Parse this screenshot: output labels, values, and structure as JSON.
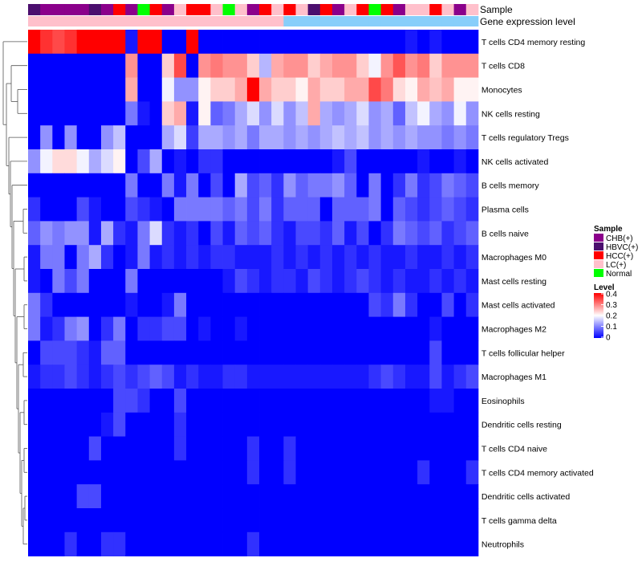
{
  "chart_data": {
    "type": "heatmap",
    "title": "",
    "annotation_labels": [
      "Sample",
      "Gene expression level"
    ],
    "rows": [
      "T cells CD4 memory resting",
      "T cells CD8",
      "Monocytes",
      "NK cells resting",
      "T cells regulatory  Tregs",
      "NK cells activated",
      "B cells memory",
      "Plasma cells",
      "B cells naive",
      "Macrophages M0",
      "Mast cells resting",
      "Mast cells activated",
      "Macrophages M2",
      "T cells follicular helper",
      "Macrophages M1",
      "Eosinophils",
      "Dendritic cells resting",
      "T cells CD4 naive",
      "T cells CD4 memory activated",
      "Dendritic cells activated",
      "T cells gamma delta",
      "Neutrophils"
    ],
    "sample_groups": [
      "HBVC(+)",
      "CHB(+)",
      "CHB(+)",
      "CHB(+)",
      "CHB(+)",
      "HBVC(+)",
      "CHB(+)",
      "HCC(+)",
      "CHB(+)",
      "Normal",
      "HCC(+)",
      "CHB(+)",
      "LC(+)",
      "HCC(+)",
      "HCC(+)",
      "LC(+)",
      "Normal",
      "LC(+)",
      "CHB(+)",
      "HCC(+)",
      "LC(+)",
      "HCC(+)",
      "LC(+)",
      "HBVC(+)",
      "HCC(+)",
      "CHB(+)",
      "LC(+)",
      "HCC(+)",
      "Normal",
      "HCC(+)",
      "CHB(+)",
      "LC(+)",
      "LC(+)",
      "HCC(+)",
      "LC(+)",
      "CHB(+)",
      "LC(+)"
    ],
    "expression_level_colors": [
      "#ffc0cb",
      "#ffc0cb",
      "#ffc0cb",
      "#ffc0cb",
      "#ffc0cb",
      "#ffc0cb",
      "#ffc0cb",
      "#ffc0cb",
      "#ffc0cb",
      "#ffc0cb",
      "#ffc0cb",
      "#ffc0cb",
      "#ffc0cb",
      "#ffc0cb",
      "#ffc0cb",
      "#ffc0cb",
      "#ffc0cb",
      "#ffc0cb",
      "#ffc0cb",
      "#ffc0cb",
      "#ffc0cb",
      "#87cefa",
      "#87cefa",
      "#87cefa",
      "#87cefa",
      "#87cefa",
      "#87cefa",
      "#87cefa",
      "#87cefa",
      "#87cefa",
      "#87cefa",
      "#87cefa",
      "#87cefa",
      "#87cefa",
      "#87cefa",
      "#87cefa",
      "#87cefa"
    ],
    "values": [
      [
        0.42,
        0.38,
        0.36,
        0.38,
        0.42,
        0.42,
        0.42,
        0.42,
        0.02,
        0.42,
        0.42,
        0.0,
        0.0,
        0.42,
        0.0,
        0.0,
        0.0,
        0.0,
        0.0,
        0.0,
        0.0,
        0.0,
        0.0,
        0.0,
        0.0,
        0.0,
        0.0,
        0.0,
        0.0,
        0.0,
        0.0,
        0.02,
        0.0,
        0.02,
        0.0,
        0.0,
        0.0
      ],
      [
        0.0,
        0.0,
        0.0,
        0.0,
        0.0,
        0.0,
        0.0,
        0.0,
        0.3,
        0.0,
        0.0,
        0.25,
        0.36,
        0.0,
        0.3,
        0.32,
        0.3,
        0.3,
        0.25,
        0.15,
        0.28,
        0.3,
        0.3,
        0.25,
        0.28,
        0.3,
        0.3,
        0.25,
        0.2,
        0.3,
        0.35,
        0.3,
        0.32,
        0.25,
        0.3,
        0.3,
        0.3
      ],
      [
        0.0,
        0.0,
        0.0,
        0.0,
        0.0,
        0.0,
        0.0,
        0.0,
        0.28,
        0.0,
        0.0,
        0.2,
        0.12,
        0.12,
        0.22,
        0.25,
        0.25,
        0.28,
        0.42,
        0.28,
        0.25,
        0.25,
        0.22,
        0.28,
        0.25,
        0.25,
        0.28,
        0.28,
        0.36,
        0.32,
        0.24,
        0.22,
        0.28,
        0.26,
        0.28,
        0.22,
        0.22
      ],
      [
        0.0,
        0.0,
        0.0,
        0.0,
        0.0,
        0.0,
        0.0,
        0.0,
        0.1,
        0.02,
        0.0,
        0.25,
        0.28,
        0.02,
        0.22,
        0.08,
        0.1,
        0.14,
        0.18,
        0.12,
        0.18,
        0.12,
        0.16,
        0.28,
        0.14,
        0.12,
        0.14,
        0.18,
        0.12,
        0.14,
        0.08,
        0.16,
        0.2,
        0.14,
        0.12,
        0.2,
        0.12
      ],
      [
        0.0,
        0.12,
        0.0,
        0.12,
        0.0,
        0.0,
        0.12,
        0.16,
        0.0,
        0.0,
        0.0,
        0.14,
        0.18,
        0.05,
        0.14,
        0.14,
        0.12,
        0.14,
        0.1,
        0.14,
        0.14,
        0.12,
        0.14,
        0.12,
        0.14,
        0.16,
        0.14,
        0.16,
        0.12,
        0.14,
        0.12,
        0.14,
        0.12,
        0.12,
        0.1,
        0.12,
        0.1
      ],
      [
        0.12,
        0.2,
        0.24,
        0.24,
        0.2,
        0.14,
        0.18,
        0.22,
        0.0,
        0.06,
        0.14,
        0.0,
        0.02,
        0.0,
        0.04,
        0.04,
        0.0,
        0.0,
        0.0,
        0.0,
        0.0,
        0.0,
        0.0,
        0.0,
        0.0,
        0.02,
        0.06,
        0.0,
        0.0,
        0.0,
        0.0,
        0.0,
        0.02,
        0.0,
        0.0,
        0.02,
        0.0
      ],
      [
        0.0,
        0.0,
        0.0,
        0.0,
        0.0,
        0.0,
        0.0,
        0.0,
        0.1,
        0.0,
        0.0,
        0.1,
        0.02,
        0.1,
        0.0,
        0.06,
        0.0,
        0.14,
        0.06,
        0.08,
        0.04,
        0.12,
        0.08,
        0.1,
        0.1,
        0.12,
        0.08,
        0.0,
        0.1,
        0.0,
        0.04,
        0.1,
        0.04,
        0.06,
        0.1,
        0.08,
        0.06
      ],
      [
        0.04,
        0.0,
        0.0,
        0.0,
        0.06,
        0.02,
        0.0,
        0.0,
        0.06,
        0.04,
        0.02,
        0.0,
        0.1,
        0.1,
        0.1,
        0.1,
        0.08,
        0.1,
        0.06,
        0.1,
        0.04,
        0.08,
        0.08,
        0.08,
        0.0,
        0.08,
        0.08,
        0.08,
        0.1,
        0.0,
        0.08,
        0.06,
        0.04,
        0.06,
        0.08,
        0.06,
        0.04
      ],
      [
        0.08,
        0.12,
        0.1,
        0.12,
        0.12,
        0.02,
        0.14,
        0.04,
        0.02,
        0.1,
        0.18,
        0.04,
        0.02,
        0.04,
        0.0,
        0.06,
        0.02,
        0.08,
        0.06,
        0.08,
        0.04,
        0.02,
        0.06,
        0.06,
        0.04,
        0.08,
        0.02,
        0.06,
        0.0,
        0.04,
        0.1,
        0.08,
        0.06,
        0.08,
        0.04,
        0.06,
        0.08
      ],
      [
        0.02,
        0.1,
        0.1,
        0.0,
        0.1,
        0.14,
        0.04,
        0.0,
        0.02,
        0.1,
        0.02,
        0.04,
        0.02,
        0.04,
        0.02,
        0.04,
        0.04,
        0.02,
        0.02,
        0.02,
        0.04,
        0.02,
        0.04,
        0.02,
        0.04,
        0.02,
        0.04,
        0.02,
        0.04,
        0.02,
        0.02,
        0.04,
        0.02,
        0.02,
        0.04,
        0.02,
        0.04
      ],
      [
        0.02,
        0.0,
        0.1,
        0.06,
        0.1,
        0.0,
        0.0,
        0.0,
        0.1,
        0.0,
        0.0,
        0.0,
        0.0,
        0.0,
        0.0,
        0.0,
        0.02,
        0.06,
        0.04,
        0.02,
        0.04,
        0.04,
        0.02,
        0.06,
        0.04,
        0.02,
        0.04,
        0.06,
        0.04,
        0.02,
        0.04,
        0.02,
        0.02,
        0.04,
        0.02,
        0.04,
        0.02
      ],
      [
        0.1,
        0.04,
        0.0,
        0.0,
        0.0,
        0.0,
        0.0,
        0.0,
        0.02,
        0.0,
        0.0,
        0.02,
        0.1,
        0.0,
        0.0,
        0.0,
        0.0,
        0.0,
        0.0,
        0.0,
        0.0,
        0.0,
        0.0,
        0.0,
        0.0,
        0.0,
        0.0,
        0.0,
        0.06,
        0.04,
        0.1,
        0.04,
        0.0,
        0.0,
        0.06,
        0.0,
        0.04
      ],
      [
        0.1,
        0.02,
        0.04,
        0.1,
        0.12,
        0.0,
        0.04,
        0.1,
        0.0,
        0.04,
        0.04,
        0.06,
        0.06,
        0.0,
        0.02,
        0.0,
        0.0,
        0.02,
        0.0,
        0.0,
        0.0,
        0.0,
        0.0,
        0.0,
        0.0,
        0.0,
        0.0,
        0.0,
        0.0,
        0.0,
        0.0,
        0.0,
        0.0,
        0.02,
        0.0,
        0.0,
        0.0
      ],
      [
        0.0,
        0.06,
        0.06,
        0.06,
        0.04,
        0.02,
        0.08,
        0.08,
        0.0,
        0.0,
        0.0,
        0.0,
        0.0,
        0.0,
        0.0,
        0.0,
        0.0,
        0.0,
        0.0,
        0.0,
        0.0,
        0.0,
        0.0,
        0.0,
        0.0,
        0.0,
        0.0,
        0.0,
        0.0,
        0.0,
        0.0,
        0.0,
        0.0,
        0.06,
        0.0,
        0.0,
        0.0
      ],
      [
        0.02,
        0.04,
        0.04,
        0.06,
        0.04,
        0.02,
        0.04,
        0.06,
        0.04,
        0.06,
        0.08,
        0.06,
        0.02,
        0.04,
        0.02,
        0.02,
        0.04,
        0.04,
        0.02,
        0.02,
        0.02,
        0.02,
        0.02,
        0.02,
        0.02,
        0.02,
        0.02,
        0.02,
        0.04,
        0.06,
        0.04,
        0.02,
        0.02,
        0.06,
        0.02,
        0.04,
        0.06
      ],
      [
        0.0,
        0.0,
        0.0,
        0.0,
        0.0,
        0.0,
        0.0,
        0.06,
        0.06,
        0.04,
        0.0,
        0.0,
        0.06,
        0.0,
        0.0,
        0.0,
        0.0,
        0.0,
        0.0,
        0.0,
        0.0,
        0.0,
        0.0,
        0.0,
        0.0,
        0.0,
        0.0,
        0.0,
        0.0,
        0.0,
        0.0,
        0.0,
        0.0,
        0.02,
        0.02,
        0.0,
        0.0
      ],
      [
        0.0,
        0.0,
        0.0,
        0.0,
        0.0,
        0.0,
        0.02,
        0.06,
        0.0,
        0.0,
        0.0,
        0.0,
        0.04,
        0.0,
        0.0,
        0.0,
        0.0,
        0.0,
        0.0,
        0.0,
        0.0,
        0.0,
        0.0,
        0.0,
        0.0,
        0.0,
        0.0,
        0.0,
        0.0,
        0.0,
        0.0,
        0.0,
        0.0,
        0.0,
        0.0,
        0.0,
        0.0
      ],
      [
        0.0,
        0.0,
        0.0,
        0.0,
        0.0,
        0.06,
        0.0,
        0.0,
        0.0,
        0.0,
        0.0,
        0.0,
        0.04,
        0.0,
        0.0,
        0.0,
        0.0,
        0.0,
        0.04,
        0.0,
        0.0,
        0.04,
        0.0,
        0.0,
        0.0,
        0.0,
        0.0,
        0.0,
        0.0,
        0.0,
        0.0,
        0.0,
        0.0,
        0.0,
        0.0,
        0.0,
        0.0
      ],
      [
        0.0,
        0.0,
        0.0,
        0.0,
        0.0,
        0.0,
        0.0,
        0.0,
        0.0,
        0.0,
        0.0,
        0.0,
        0.0,
        0.0,
        0.0,
        0.0,
        0.0,
        0.0,
        0.04,
        0.0,
        0.0,
        0.04,
        0.0,
        0.0,
        0.0,
        0.0,
        0.0,
        0.0,
        0.0,
        0.0,
        0.0,
        0.0,
        0.04,
        0.0,
        0.0,
        0.0,
        0.04
      ],
      [
        0.0,
        0.0,
        0.0,
        0.0,
        0.06,
        0.06,
        0.0,
        0.0,
        0.0,
        0.0,
        0.0,
        0.0,
        0.0,
        0.0,
        0.0,
        0.0,
        0.0,
        0.0,
        0.0,
        0.0,
        0.0,
        0.0,
        0.0,
        0.0,
        0.0,
        0.0,
        0.0,
        0.0,
        0.0,
        0.0,
        0.0,
        0.0,
        0.0,
        0.0,
        0.0,
        0.0,
        0.0
      ],
      [
        0.0,
        0.0,
        0.0,
        0.0,
        0.0,
        0.0,
        0.0,
        0.0,
        0.0,
        0.0,
        0.0,
        0.0,
        0.0,
        0.0,
        0.0,
        0.0,
        0.0,
        0.0,
        0.0,
        0.0,
        0.0,
        0.0,
        0.0,
        0.0,
        0.0,
        0.0,
        0.0,
        0.0,
        0.0,
        0.0,
        0.0,
        0.0,
        0.0,
        0.0,
        0.0,
        0.0,
        0.0
      ],
      [
        0.0,
        0.0,
        0.0,
        0.04,
        0.0,
        0.0,
        0.04,
        0.04,
        0.0,
        0.0,
        0.0,
        0.0,
        0.0,
        0.0,
        0.0,
        0.0,
        0.0,
        0.0,
        0.04,
        0.0,
        0.0,
        0.0,
        0.0,
        0.0,
        0.0,
        0.0,
        0.0,
        0.0,
        0.0,
        0.0,
        0.0,
        0.0,
        0.0,
        0.0,
        0.0,
        0.0,
        0.0
      ]
    ],
    "color_scale": {
      "min": 0,
      "max": 0.42,
      "low": "#0000ff",
      "mid": "#ffffff",
      "high": "#ff0000"
    },
    "legends": {
      "sample": {
        "title": "Sample",
        "entries": [
          {
            "label": "CHB(+)",
            "color": "#8b008b"
          },
          {
            "label": "HBVC(+)",
            "color": "#4b0f6e"
          },
          {
            "label": "HCC(+)",
            "color": "#ff0000"
          },
          {
            "label": "LC(+)",
            "color": "#ffc0cb"
          },
          {
            "label": "Normal",
            "color": "#00ff00"
          }
        ]
      },
      "level": {
        "title": "Level",
        "ticks": [
          "0.4",
          "0.3",
          "0.2",
          "0.1",
          "0"
        ]
      }
    }
  }
}
